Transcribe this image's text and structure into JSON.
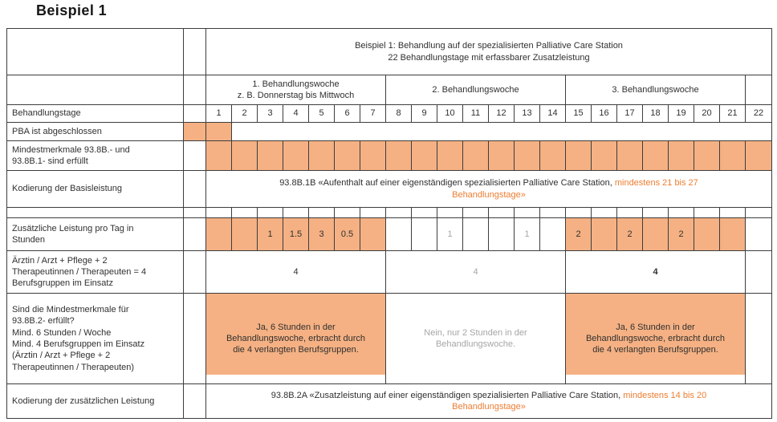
{
  "page_title": "Beispiel 1",
  "colors": {
    "orange_fill": "#F5B183",
    "orange_text": "#ED7D31",
    "gray_text": "#A6A6A6",
    "border": "#3D3D3D"
  },
  "table": {
    "header": {
      "line1": "Beispiel 1: Behandlung auf der spezialisierten Palliative Care Station",
      "line2": "22 Behandlungstage mit erfassbarer Zusatzleistung"
    },
    "weeks": [
      {
        "title": "1. Behandlungswoche",
        "subtitle": "z. B. Donnerstag bis Mittwoch"
      },
      {
        "title": "2. Behandlungswoche",
        "subtitle": ""
      },
      {
        "title": "3. Behandlungswoche",
        "subtitle": ""
      }
    ],
    "rows": {
      "days": {
        "label": "Behandlungstage",
        "values": [
          "1",
          "2",
          "3",
          "4",
          "5",
          "6",
          "7",
          "8",
          "9",
          "10",
          "11",
          "12",
          "13",
          "14",
          "15",
          "16",
          "17",
          "18",
          "19",
          "20",
          "21",
          "22"
        ]
      },
      "pba": {
        "label": "PBA ist abgeschlossen"
      },
      "mindestmerkmale": {
        "label": "Mindestmerkmale 93.8B.- und\n93.8B.1- sind erfüllt"
      },
      "basisleistung": {
        "label": "Kodierung der Basisleistung",
        "code_text": "93.8B.1B «Aufenthalt auf einer eigenständigen spezialisierten Palliative Care Station, ",
        "code_highlight": "mindestens 21 bis 27\nBehandlungstage»"
      },
      "hours": {
        "label": "Zusätzliche Leistung pro Tag in\nStunden",
        "values": [
          "",
          "",
          "1",
          "1.5",
          "3",
          "0.5",
          "",
          "",
          "",
          "1",
          "",
          "",
          "1",
          "",
          "2",
          "",
          "2",
          "",
          "2",
          "",
          "",
          ""
        ],
        "fills": [
          "orange",
          "orange",
          "orange",
          "orange",
          "orange",
          "orange",
          "orange",
          "white",
          "white",
          "white",
          "white",
          "white",
          "white",
          "white",
          "orange",
          "orange",
          "orange",
          "orange",
          "orange",
          "orange",
          "orange",
          "white"
        ]
      },
      "berufsgruppen": {
        "label": "Ärztin / Arzt + Pflege + 2\nTherapeutinnen / Therapeuten = 4\nBerufsgruppen im Einsatz",
        "week_values": [
          "4",
          "4",
          "4"
        ]
      },
      "criteria": {
        "label": "Sind die Mindestmerkmale für\n93.8B.2- erfüllt?\nMind. 6 Stunden / Woche\nMind. 4 Berufsgruppen im Einsatz\n(Ärztin / Arzt + Pflege + 2\nTherapeutinnen / Therapeuten)",
        "week_texts": [
          "Ja, 6 Stunden in der\nBehandlungswoche, erbracht durch\ndie 4 verlangten Berufsgruppen.",
          "Nein, nur 2 Stunden in der\nBehandlungswoche.",
          "Ja, 6 Stunden in der\nBehandlungswoche, erbracht durch\ndie 4 verlangten Berufsgruppen."
        ]
      },
      "zusatzleistung": {
        "label": "Kodierung der zusätzlichen Leistung",
        "code_text": "93.8B.2A «Zusatzleistung auf einer eigenständigen spezialisierten Palliative Care Station, ",
        "code_highlight": "mindestens 14 bis 20\nBehandlungstage»"
      }
    }
  }
}
